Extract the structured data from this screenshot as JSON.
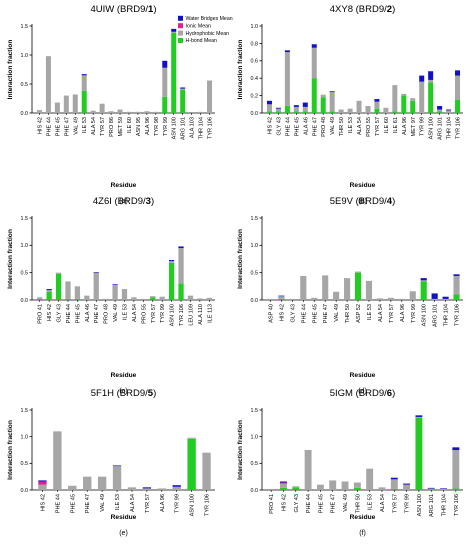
{
  "legend": [
    {
      "name": "Water Bridges Mean",
      "color": "#1010c8"
    },
    {
      "name": "Ionic Mean",
      "color": "#e0208c"
    },
    {
      "name": "Hydrophobic Mean",
      "color": "#a6a6a6"
    },
    {
      "name": "H-bond Mean",
      "color": "#22cc22"
    }
  ],
  "chart_data": [
    {
      "type": "bar",
      "stacked": true,
      "title_prefix": "4UIW (BRD9/",
      "title_bold": "1",
      "title_suffix": ")",
      "panel_label": "(a)",
      "xlabel": "Residue",
      "ylabel": "Interaction fraction",
      "ylim": [
        0,
        1.5
      ],
      "yticks": [
        "0.0",
        "0.5",
        "1.0",
        "1.5"
      ],
      "categories": [
        "HIS 42",
        "PHE 44",
        "PHE 45",
        "PHE 47",
        "VAL 49",
        "ILE 53",
        "ALA 54",
        "TYR 57",
        "PRO 86",
        "MET 59",
        "ILE 60",
        "ASN 95",
        "ALA 96",
        "TYR 98",
        "TYR 99",
        "ASN 100",
        "ARG 101",
        "ALA 103",
        "THR 104",
        "TYR 106"
      ],
      "series": [
        {
          "name": "H-bond Mean",
          "values": [
            0,
            0,
            0,
            0,
            0,
            0.38,
            0,
            0,
            0,
            0,
            0,
            0,
            0,
            0,
            0.28,
            1.38,
            0.4,
            0,
            0,
            0
          ]
        },
        {
          "name": "Hydrophobic Mean",
          "values": [
            0.05,
            0.98,
            0.18,
            0.3,
            0.32,
            0.27,
            0.04,
            0.16,
            0.03,
            0.06,
            0.02,
            0.02,
            0.03,
            0.02,
            0.5,
            0.02,
            0.02,
            0,
            0.02,
            0.56
          ]
        },
        {
          "name": "Ionic Mean",
          "values": [
            0,
            0,
            0,
            0,
            0,
            0,
            0,
            0,
            0,
            0,
            0,
            0,
            0,
            0,
            0,
            0,
            0,
            0,
            0,
            0
          ]
        },
        {
          "name": "Water Bridges Mean",
          "values": [
            0,
            0,
            0,
            0,
            0,
            0.02,
            0,
            0,
            0,
            0,
            0,
            0,
            0,
            0,
            0.12,
            0.05,
            0.02,
            0,
            0,
            0
          ]
        }
      ]
    },
    {
      "type": "bar",
      "stacked": true,
      "title_prefix": "4XY8 (BRD9/",
      "title_bold": "2",
      "title_suffix": ")",
      "panel_label": "(b)",
      "xlabel": "Residue",
      "ylabel": "Interaction fraction",
      "ylim": [
        0,
        1.0
      ],
      "yticks": [
        "0.0",
        "0.2",
        "0.4",
        "0.6",
        "0.8",
        "1.0"
      ],
      "categories": [
        "HIS 42",
        "GLY 43",
        "PHE 44",
        "PHE 45",
        "ALA 46",
        "PHE 47",
        "PRO 48",
        "VAL 49",
        "THR 50",
        "ILE 53",
        "ALA 54",
        "PRO 55",
        "TYR 57",
        "ILE 60",
        "ILE 61",
        "ALA 96",
        "MET 97",
        "TYR 99",
        "ASN 100",
        "ARG 101",
        "THR 104",
        "TYR 106"
      ],
      "series": [
        {
          "name": "H-bond Mean",
          "values": [
            0.02,
            0.02,
            0.08,
            0.02,
            0.02,
            0.4,
            0.18,
            0.02,
            0,
            0,
            0,
            0,
            0.05,
            0,
            0.02,
            0.2,
            0.14,
            0,
            0.35,
            0.02,
            0,
            0.15
          ]
        },
        {
          "name": "Hydrophobic Mean",
          "values": [
            0.08,
            0.03,
            0.62,
            0.05,
            0.05,
            0.35,
            0.03,
            0.22,
            0.04,
            0.05,
            0.14,
            0.08,
            0.08,
            0.06,
            0.3,
            0.02,
            0.03,
            0.36,
            0.03,
            0.02,
            0.03,
            0.28
          ]
        },
        {
          "name": "Ionic Mean",
          "values": [
            0,
            0,
            0,
            0,
            0,
            0,
            0,
            0,
            0,
            0,
            0,
            0,
            0,
            0,
            0,
            0,
            0,
            0,
            0,
            0,
            0,
            0
          ]
        },
        {
          "name": "Water Bridges Mean",
          "values": [
            0.04,
            0.01,
            0.02,
            0.02,
            0.05,
            0.04,
            0,
            0.01,
            0,
            0,
            0,
            0,
            0.03,
            0,
            0,
            0,
            0,
            0.07,
            0.1,
            0.04,
            0.01,
            0.06
          ]
        }
      ]
    },
    {
      "type": "bar",
      "stacked": true,
      "title_prefix": "4Z6I (BRD9/",
      "title_bold": "3",
      "title_suffix": ")",
      "panel_label": "(c)",
      "xlabel": "Residue",
      "ylabel": "Interaction fraction",
      "ylim": [
        0,
        1.5
      ],
      "yticks": [
        "0.0",
        "0.5",
        "1.0",
        "1.5"
      ],
      "categories": [
        "PRO 41",
        "HIS 42",
        "GLY 43",
        "PHE 44",
        "PHE 45",
        "ALA 46",
        "PHE 47",
        "PRO 48",
        "VAL 49",
        "ILE 53",
        "ALA 54",
        "PRO 55",
        "TYR 57",
        "TYR 99",
        "ASN 100",
        "TYR 106",
        "LEU 109",
        "ALA 110",
        "ILE 113"
      ],
      "series": [
        {
          "name": "H-bond Mean",
          "values": [
            0.02,
            0.15,
            0.48,
            0.02,
            0.02,
            0,
            0,
            0,
            0,
            0,
            0,
            0,
            0.05,
            0,
            0.68,
            0.3,
            0,
            0,
            0
          ]
        },
        {
          "name": "Hydrophobic Mean",
          "values": [
            0.03,
            0.03,
            0.02,
            0.32,
            0.23,
            0.08,
            0.5,
            0.02,
            0.28,
            0.2,
            0.05,
            0.02,
            0.02,
            0.06,
            0.03,
            0.65,
            0.08,
            0.03,
            0.04
          ]
        },
        {
          "name": "Ionic Mean",
          "values": [
            0,
            0,
            0,
            0,
            0,
            0,
            0,
            0,
            0,
            0,
            0,
            0,
            0,
            0,
            0,
            0,
            0,
            0,
            0
          ]
        },
        {
          "name": "Water Bridges Mean",
          "values": [
            0,
            0.02,
            0,
            0,
            0,
            0,
            0.01,
            0,
            0.01,
            0,
            0,
            0,
            0,
            0,
            0.02,
            0.03,
            0,
            0,
            0
          ]
        }
      ]
    },
    {
      "type": "bar",
      "stacked": true,
      "title_prefix": "5E9V (BRD9/",
      "title_bold": "4",
      "title_suffix": ")",
      "panel_label": "(d)",
      "xlabel": "Residue",
      "ylabel": "Interaction fraction",
      "ylim": [
        0,
        1.5
      ],
      "yticks": [
        "0.0",
        "0.5",
        "1.0",
        "1.5"
      ],
      "categories": [
        "ASP 40",
        "HIS 42",
        "GLY 43",
        "PHE 44",
        "PHE 45",
        "PHE 47",
        "VAL 49",
        "THR 50",
        "ASP 52",
        "ILE 53",
        "ALA 54",
        "TYR 57",
        "ALA 96",
        "TYR 99",
        "ASN 100",
        "ARG 101",
        "THR 104",
        "TYR 106"
      ],
      "series": [
        {
          "name": "H-bond Mean",
          "values": [
            0,
            0.02,
            0,
            0,
            0,
            0,
            0,
            0,
            0.5,
            0,
            0,
            0,
            0,
            0,
            0.34,
            0,
            0,
            0.1
          ]
        },
        {
          "name": "Hydrophobic Mean",
          "values": [
            0.02,
            0.05,
            0.02,
            0.44,
            0.04,
            0.45,
            0.15,
            0.4,
            0.02,
            0.35,
            0.03,
            0.04,
            0.02,
            0.16,
            0.02,
            0.02,
            0.02,
            0.34
          ]
        },
        {
          "name": "Ionic Mean",
          "values": [
            0,
            0,
            0,
            0,
            0,
            0,
            0,
            0,
            0,
            0,
            0,
            0,
            0,
            0,
            0,
            0,
            0,
            0
          ]
        },
        {
          "name": "Water Bridges Mean",
          "values": [
            0,
            0.01,
            0,
            0,
            0,
            0,
            0,
            0,
            0,
            0,
            0,
            0,
            0,
            0,
            0.04,
            0.1,
            0.04,
            0.03
          ]
        }
      ]
    },
    {
      "type": "bar",
      "stacked": true,
      "title_prefix": "5F1H (BRD9/",
      "title_bold": "5",
      "title_suffix": ")",
      "panel_label": "(e)",
      "xlabel": "Residue",
      "ylabel": "Interaction fraction",
      "ylim": [
        0,
        1.5
      ],
      "yticks": [
        "0.0",
        "0.5",
        "1.0",
        "1.5"
      ],
      "categories": [
        "HIS 42",
        "PHE 44",
        "PHE 45",
        "PHE 47",
        "VAL 49",
        "ILE 53",
        "ALA 54",
        "TYR 57",
        "ALA 96",
        "TYR 99",
        "ASN 100",
        "TYR 106"
      ],
      "series": [
        {
          "name": "H-bond Mean",
          "values": [
            0,
            0,
            0,
            0,
            0,
            0,
            0,
            0,
            0,
            0,
            0.96,
            0
          ]
        },
        {
          "name": "Hydrophobic Mean",
          "values": [
            0.1,
            1.1,
            0.08,
            0.25,
            0.25,
            0.45,
            0.05,
            0.03,
            0.03,
            0.06,
            0.02,
            0.7
          ]
        },
        {
          "name": "Ionic Mean",
          "values": [
            0.06,
            0,
            0,
            0,
            0,
            0,
            0,
            0,
            0,
            0,
            0,
            0
          ]
        },
        {
          "name": "Water Bridges Mean",
          "values": [
            0.02,
            0,
            0,
            0,
            0,
            0.01,
            0,
            0.02,
            0,
            0.03,
            0,
            0
          ]
        }
      ]
    },
    {
      "type": "bar",
      "stacked": true,
      "title_prefix": "5IGM (BRD9/",
      "title_bold": "6",
      "title_suffix": ")",
      "panel_label": "(f)",
      "xlabel": "Residue",
      "ylabel": "Interaction fraction",
      "ylim": [
        0,
        1.5
      ],
      "yticks": [
        "0.0",
        "0.5",
        "1.0",
        "1.5"
      ],
      "categories": [
        "PRO 41",
        "HIS 42",
        "GLY 43",
        "PHE 44",
        "PHE 45",
        "PHE 47",
        "VAL 49",
        "THR 50",
        "ILE 53",
        "ALA 54",
        "TYR 57",
        "TYR 99",
        "ASN 100",
        "ARG 101",
        "THR 104",
        "TYR 106"
      ],
      "series": [
        {
          "name": "H-bond Mean",
          "values": [
            0,
            0.04,
            0.05,
            0,
            0,
            0,
            0,
            0.04,
            0,
            0,
            0.02,
            0,
            1.35,
            0.01,
            0,
            0.03
          ]
        },
        {
          "name": "Hydrophobic Mean",
          "values": [
            0.02,
            0.08,
            0.02,
            0.75,
            0.1,
            0.18,
            0.16,
            0.1,
            0.4,
            0.05,
            0.18,
            0.1,
            0.02,
            0.02,
            0.02,
            0.72
          ]
        },
        {
          "name": "Ionic Mean",
          "values": [
            0,
            0.02,
            0,
            0,
            0,
            0,
            0,
            0,
            0,
            0,
            0,
            0,
            0,
            0,
            0,
            0
          ]
        },
        {
          "name": "Water Bridges Mean",
          "values": [
            0,
            0.02,
            0,
            0,
            0,
            0,
            0,
            0,
            0,
            0,
            0.03,
            0.02,
            0.03,
            0.01,
            0.01,
            0.05
          ]
        }
      ]
    }
  ]
}
